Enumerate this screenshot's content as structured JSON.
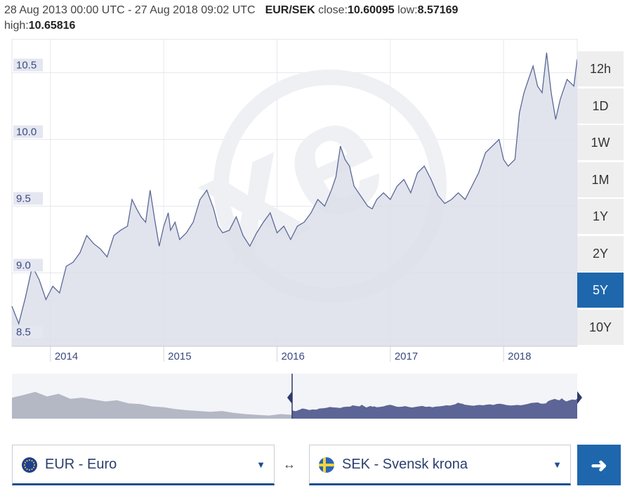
{
  "header": {
    "range": "28 Aug 2013 00:00 UTC - 27 Aug 2018 09:02 UTC",
    "pair": "EUR/SEK",
    "close_label": "close:",
    "close": "10.60095",
    "low_label": "low:",
    "low": "8.57169",
    "high_label": "high:",
    "high": "10.65816"
  },
  "timeframes": [
    {
      "label": "12h",
      "active": false
    },
    {
      "label": "1D",
      "active": false
    },
    {
      "label": "1W",
      "active": false
    },
    {
      "label": "1M",
      "active": false
    },
    {
      "label": "1Y",
      "active": false
    },
    {
      "label": "2Y",
      "active": false
    },
    {
      "label": "5Y",
      "active": true
    },
    {
      "label": "10Y",
      "active": false
    }
  ],
  "from_currency": {
    "label": "EUR - Euro",
    "flag": "eu-flag-icon"
  },
  "to_currency": {
    "label": "SEK - Svensk krona",
    "flag": "se-flag-icon"
  },
  "swap_symbol": "↔",
  "go_symbol": "➜",
  "colors": {
    "accent": "#1e67ad",
    "line": "#5c6898",
    "area": "#dcdfe9",
    "navigator_dark": "#5c6595",
    "navigator_light": "#b4b8c4"
  },
  "chart_data": {
    "type": "area",
    "xlabel": "",
    "ylabel": "",
    "ylim": [
      8.45,
      10.75
    ],
    "xlim": [
      2013.66,
      2018.65
    ],
    "y_ticks": [
      8.5,
      9.0,
      9.5,
      10.0,
      10.5
    ],
    "y_tick_labels": [
      "8.5",
      "9.0",
      "9.5",
      "10.0",
      "10.5"
    ],
    "x_ticks": [
      2014,
      2015,
      2016,
      2017,
      2018
    ],
    "x_tick_labels": [
      "2014",
      "2015",
      "2016",
      "2017",
      "2018"
    ],
    "grid": true,
    "series": [
      {
        "x": [
          2013.66,
          2013.72,
          2013.78,
          2013.84,
          2013.9,
          2013.96,
          2014.02,
          2014.08,
          2014.14,
          2014.2,
          2014.26,
          2014.32,
          2014.38,
          2014.44,
          2014.5,
          2014.56,
          2014.62,
          2014.68,
          2014.72,
          2014.76,
          2014.8,
          2014.84,
          2014.88,
          2014.92,
          2014.96,
          2015.0,
          2015.04,
          2015.06,
          2015.1,
          2015.14,
          2015.2,
          2015.26,
          2015.32,
          2015.38,
          2015.44,
          2015.48,
          2015.52,
          2015.58,
          2015.64,
          2015.7,
          2015.76,
          2015.82,
          2015.88,
          2015.94,
          2016.0,
          2016.06,
          2016.12,
          2016.18,
          2016.24,
          2016.3,
          2016.36,
          2016.42,
          2016.48,
          2016.52,
          2016.56,
          2016.6,
          2016.64,
          2016.68,
          2016.72,
          2016.76,
          2016.8,
          2016.84,
          2016.88,
          2016.94,
          2017.0,
          2017.06,
          2017.12,
          2017.18,
          2017.24,
          2017.3,
          2017.36,
          2017.42,
          2017.48,
          2017.54,
          2017.6,
          2017.66,
          2017.72,
          2017.78,
          2017.84,
          2017.9,
          2017.96,
          2018.0,
          2018.04,
          2018.1,
          2018.14,
          2018.18,
          2018.22,
          2018.26,
          2018.3,
          2018.34,
          2018.38,
          2018.42,
          2018.46,
          2018.5,
          2018.56,
          2018.62,
          2018.65
        ],
        "y": [
          8.75,
          8.62,
          8.82,
          9.05,
          8.95,
          8.8,
          8.9,
          8.85,
          9.05,
          9.08,
          9.15,
          9.28,
          9.22,
          9.18,
          9.12,
          9.28,
          9.32,
          9.35,
          9.55,
          9.48,
          9.42,
          9.38,
          9.62,
          9.4,
          9.2,
          9.35,
          9.45,
          9.32,
          9.38,
          9.25,
          9.3,
          9.38,
          9.55,
          9.62,
          9.48,
          9.35,
          9.3,
          9.32,
          9.42,
          9.28,
          9.2,
          9.3,
          9.38,
          9.45,
          9.3,
          9.35,
          9.25,
          9.35,
          9.38,
          9.45,
          9.55,
          9.5,
          9.62,
          9.72,
          9.95,
          9.85,
          9.8,
          9.65,
          9.6,
          9.55,
          9.5,
          9.48,
          9.55,
          9.6,
          9.55,
          9.65,
          9.7,
          9.6,
          9.75,
          9.8,
          9.7,
          9.58,
          9.52,
          9.55,
          9.6,
          9.55,
          9.65,
          9.75,
          9.9,
          9.95,
          10.0,
          9.85,
          9.8,
          9.85,
          10.2,
          10.35,
          10.45,
          10.55,
          10.4,
          10.35,
          10.65,
          10.35,
          10.15,
          10.3,
          10.45,
          10.4,
          10.6
        ]
      }
    ]
  }
}
